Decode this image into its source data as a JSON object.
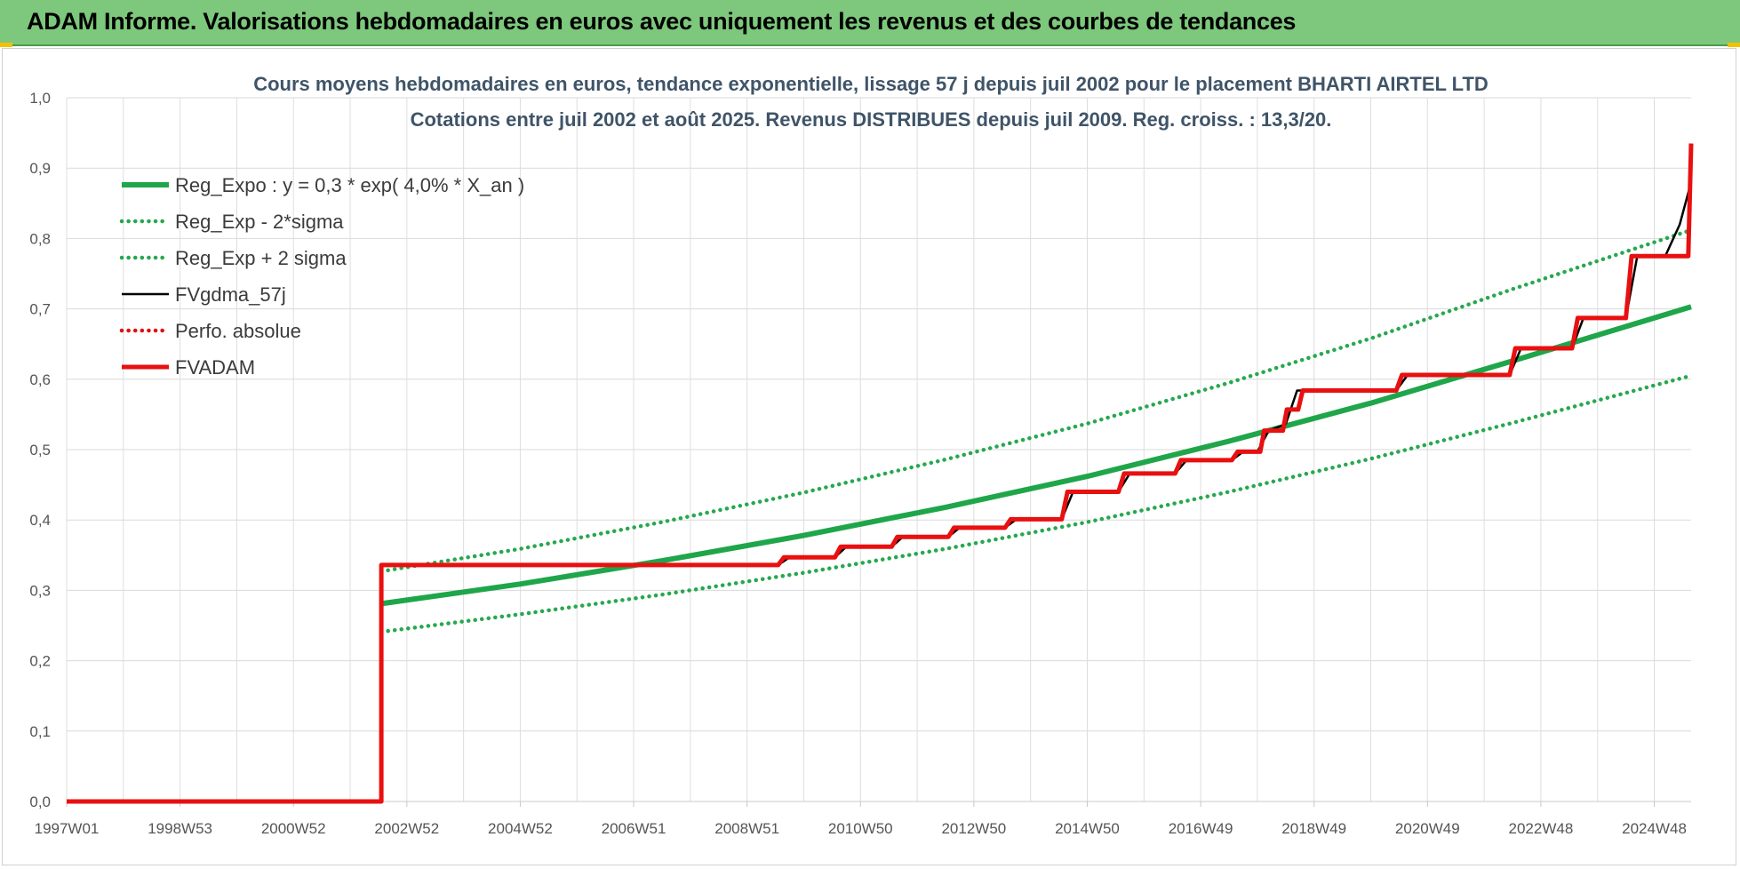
{
  "header": {
    "title": "ADAM Informe. Valorisations hebdomadaires en euros avec uniquement les revenus et des courbes de tendances"
  },
  "colors": {
    "banner": "#7dc87c",
    "reg_expo": "#1fa64a",
    "sigma": "#27a84f",
    "fvgdma": "#000000",
    "perfo": "#e01010",
    "fvadam": "#e81010"
  },
  "chart_data": {
    "type": "line",
    "title_lines": [
      "Cours moyens hebdomadaires en euros, tendance exponentielle, lissage 57 j depuis juil 2002 pour le placement BHARTI AIRTEL LTD",
      "Cotations entre juil 2002 et août 2025. Revenus DISTRIBUES depuis juil 2009. Reg. croiss. : 13,3/20."
    ],
    "xlim": [
      1997.0,
      2025.65
    ],
    "ylim": [
      0,
      1.0
    ],
    "yticks": [
      "0,0",
      "0,1",
      "0,2",
      "0,3",
      "0,4",
      "0,5",
      "0,6",
      "0,7",
      "0,8",
      "0,9",
      "1,0"
    ],
    "xticks": [
      {
        "label": "1997W01",
        "x": 1997.0
      },
      {
        "label": "1998W53",
        "x": 1999.0
      },
      {
        "label": "2000W52",
        "x": 2001.0
      },
      {
        "label": "2002W52",
        "x": 2003.0
      },
      {
        "label": "2004W52",
        "x": 2005.0
      },
      {
        "label": "2006W51",
        "x": 2007.0
      },
      {
        "label": "2008W51",
        "x": 2009.0
      },
      {
        "label": "2010W50",
        "x": 2011.0
      },
      {
        "label": "2012W50",
        "x": 2013.0
      },
      {
        "label": "2014W50",
        "x": 2015.0
      },
      {
        "label": "2016W49",
        "x": 2017.0
      },
      {
        "label": "2018W49",
        "x": 2019.0
      },
      {
        "label": "2020W49",
        "x": 2021.0
      },
      {
        "label": "2022W48",
        "x": 2023.0
      },
      {
        "label": "2024W48",
        "x": 2025.0
      }
    ],
    "grid": true,
    "legend_position": "top-left",
    "series": [
      {
        "name": "Reg_Expo : y = 0,3 * exp( 4,0% *  X_an )",
        "style": "solid-thick",
        "color": "#1fa64a",
        "x": [
          2002.55,
          2005,
          2007.5,
          2010,
          2012.5,
          2015,
          2017.5,
          2020,
          2022.5,
          2025.65
        ],
        "y": [
          0.281,
          0.309,
          0.342,
          0.378,
          0.418,
          0.462,
          0.512,
          0.566,
          0.626,
          0.703
        ]
      },
      {
        "name": "Reg_Exp - 2*sigma",
        "style": "dotted",
        "color": "#27a84f",
        "x": [
          2002.55,
          2005,
          2007.5,
          2010,
          2012.5,
          2015,
          2017.5,
          2020,
          2022.5,
          2025.65
        ],
        "y": [
          0.241,
          0.266,
          0.294,
          0.325,
          0.359,
          0.397,
          0.44,
          0.487,
          0.538,
          0.605
        ]
      },
      {
        "name": "Reg_Exp + 2 sigma",
        "style": "dotted",
        "color": "#27a84f",
        "x": [
          2002.55,
          2005,
          2007.5,
          2010,
          2012.5,
          2015,
          2017.5,
          2020,
          2022.5,
          2025.65
        ],
        "y": [
          0.327,
          0.359,
          0.397,
          0.439,
          0.486,
          0.537,
          0.595,
          0.658,
          0.728,
          0.812
        ]
      },
      {
        "name": "FVgdma_57j",
        "style": "solid",
        "color": "#000000",
        "x": [
          2002.55,
          2009.55,
          2009.75,
          2010.55,
          2010.75,
          2011.55,
          2011.75,
          2012.55,
          2012.75,
          2013.55,
          2013.75,
          2014.55,
          2014.75,
          2015.55,
          2015.75,
          2016.55,
          2016.75,
          2017.55,
          2017.75,
          2018.0,
          2018.2,
          2018.5,
          2018.7,
          2020.45,
          2020.65,
          2022.45,
          2022.65,
          2023.55,
          2023.75,
          2024.5,
          2024.7,
          2025.2,
          2025.45,
          2025.65
        ],
        "y": [
          0.336,
          0.336,
          0.347,
          0.347,
          0.362,
          0.362,
          0.376,
          0.376,
          0.389,
          0.389,
          0.401,
          0.401,
          0.44,
          0.44,
          0.466,
          0.466,
          0.485,
          0.485,
          0.497,
          0.497,
          0.527,
          0.536,
          0.584,
          0.584,
          0.606,
          0.606,
          0.644,
          0.644,
          0.687,
          0.687,
          0.775,
          0.776,
          0.82,
          0.88
        ]
      },
      {
        "name": "Perfo. absolue",
        "style": "dotted",
        "color": "#e01010",
        "x": [],
        "y": []
      },
      {
        "name": "FVADAM",
        "style": "step-thick",
        "color": "#e81010",
        "x": [
          1997.0,
          2002.55,
          2002.55,
          2009.55,
          2009.65,
          2010.55,
          2010.65,
          2011.55,
          2011.65,
          2012.55,
          2012.65,
          2013.55,
          2013.65,
          2014.55,
          2014.65,
          2015.55,
          2015.65,
          2016.55,
          2016.65,
          2017.55,
          2017.65,
          2018.05,
          2018.12,
          2018.45,
          2018.52,
          2018.72,
          2018.8,
          2020.45,
          2020.55,
          2022.45,
          2022.55,
          2023.55,
          2023.65,
          2024.5,
          2024.6,
          2025.6,
          2025.65
        ],
        "y": [
          0.0,
          0.0,
          0.336,
          0.336,
          0.347,
          0.347,
          0.362,
          0.362,
          0.376,
          0.376,
          0.389,
          0.389,
          0.401,
          0.401,
          0.44,
          0.44,
          0.466,
          0.466,
          0.485,
          0.485,
          0.497,
          0.497,
          0.527,
          0.527,
          0.557,
          0.557,
          0.584,
          0.584,
          0.606,
          0.606,
          0.644,
          0.644,
          0.687,
          0.687,
          0.775,
          0.775,
          0.935
        ]
      }
    ]
  }
}
